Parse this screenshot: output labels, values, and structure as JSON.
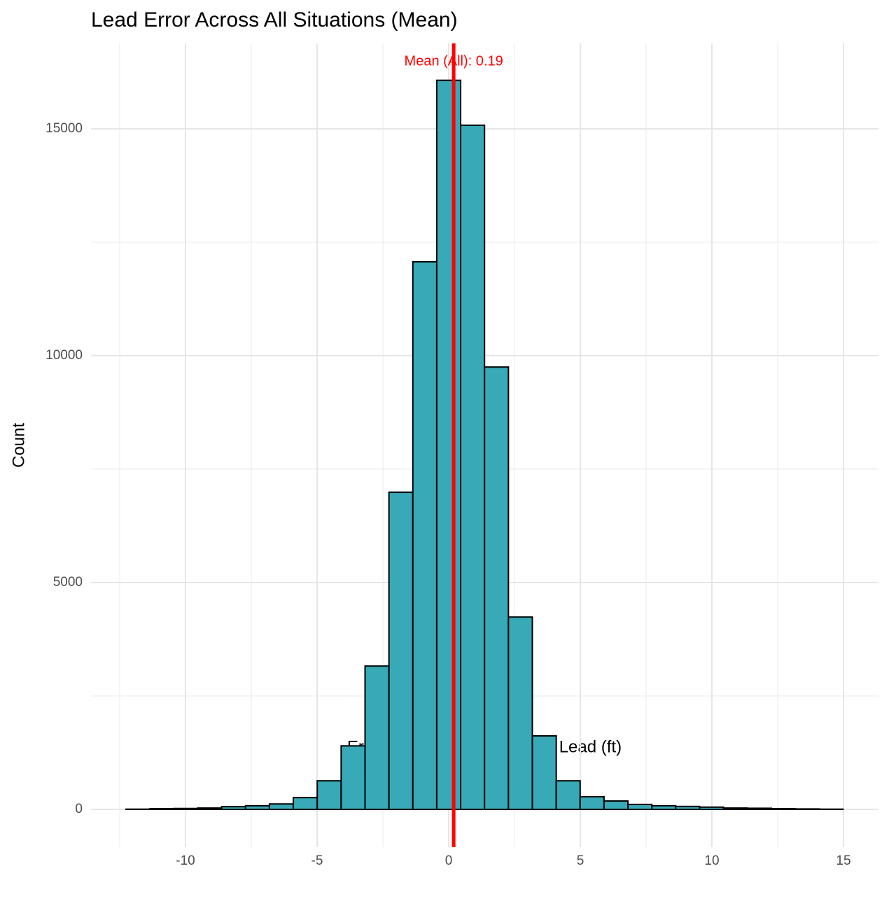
{
  "chart_data": {
    "type": "histogram",
    "title": "Lead Error Across All Situations (Mean)",
    "x_label": "Error:  Actual Lead - Optimal Lead (ft)",
    "y_label": "Count",
    "bins": [
      -12.258,
      -11.35,
      -10.442,
      -9.534,
      -8.626,
      -7.718,
      -6.81,
      -5.902,
      -4.994,
      -4.086,
      -3.178,
      -2.27,
      -1.362,
      -0.454,
      0.454,
      1.362,
      2.27,
      3.178,
      4.086,
      4.994,
      5.902,
      6.81,
      7.718,
      8.626,
      9.534,
      10.442,
      11.35,
      12.258,
      13.166,
      14.074,
      14.982
    ],
    "values": [
      5,
      15,
      20,
      30,
      60,
      80,
      120,
      260,
      630,
      1400,
      3160,
      6990,
      12070,
      16070,
      15080,
      9750,
      4240,
      1620,
      630,
      280,
      185,
      110,
      80,
      65,
      50,
      30,
      25,
      15,
      10,
      5
    ],
    "color": "#38a9b7",
    "edge_color": "#000000",
    "xlim": [
      -13.59,
      16.33
    ],
    "ylim": [
      -833,
      16883
    ],
    "xticks": [
      -10,
      -5,
      0,
      5,
      10,
      15
    ],
    "yticks": [
      0,
      5000,
      10000,
      15000
    ],
    "x_minor_grid": [
      -12.5,
      -7.5,
      -2.5,
      2.5,
      7.5,
      12.5
    ],
    "y_minor_grid": [
      2500,
      7500,
      12500
    ],
    "grid": true,
    "mean_line": {
      "value": 0.19,
      "color": "#ff0000",
      "label": "Mean (All): 0.19"
    }
  }
}
